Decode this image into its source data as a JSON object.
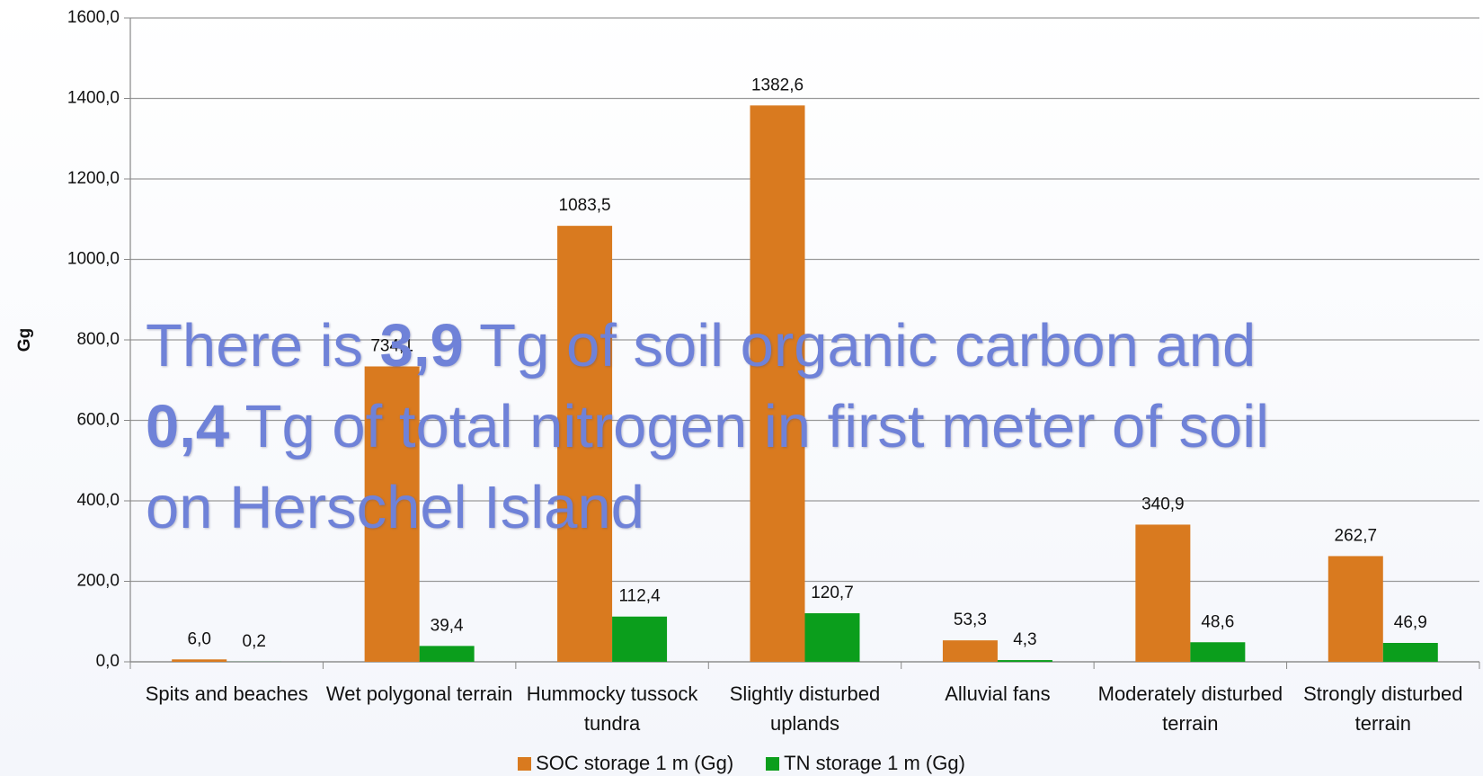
{
  "chart_data": {
    "type": "bar",
    "y_label": "Gg",
    "categories": [
      "Spits and beaches",
      "Wet polygonal terrain",
      "Hummocky tussock tundra",
      "Slightly disturbed uplands",
      "Alluvial fans",
      "Moderately disturbed terrain",
      "Strongly disturbed terrain"
    ],
    "series": [
      {
        "name": "SOC storage 1 m (Gg)",
        "color": "#d97a1f",
        "values": [
          6.0,
          734.1,
          1083.5,
          1382.6,
          53.3,
          340.9,
          262.7
        ],
        "value_labels": [
          "6,0",
          "734,1",
          "1083,5",
          "1382,6",
          "53,3",
          "340,9",
          "262,7"
        ]
      },
      {
        "name": "TN storage 1 m (Gg)",
        "color": "#0b9e1c",
        "values": [
          0.2,
          39.4,
          112.4,
          120.7,
          4.3,
          48.6,
          46.9
        ],
        "value_labels": [
          "0,2",
          "39,4",
          "112,4",
          "120,7",
          "4,3",
          "48,6",
          "46,9"
        ]
      }
    ],
    "ylim": [
      0,
      1600
    ],
    "yticks": [
      {
        "value": 0,
        "label": "0,0"
      },
      {
        "value": 200,
        "label": "200,0"
      },
      {
        "value": 400,
        "label": "400,0"
      },
      {
        "value": 600,
        "label": "600,0"
      },
      {
        "value": 800,
        "label": "800,0"
      },
      {
        "value": 1000,
        "label": "1000,0"
      },
      {
        "value": 1200,
        "label": "1200,0"
      },
      {
        "value": 1400,
        "label": "1400,0"
      },
      {
        "value": 1600,
        "label": "1600,0"
      }
    ],
    "grid": true,
    "annotation": [
      "There is ",
      "3,9",
      " Tg of soil organic carbon and ",
      "0,4",
      " Tg of total nitrogen in first meter of soil on Herschel Island"
    ],
    "annotation_bold": [
      false,
      true,
      false,
      true,
      false
    ]
  }
}
